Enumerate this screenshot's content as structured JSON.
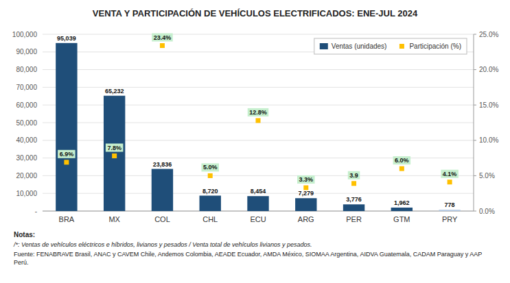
{
  "chart_data": {
    "type": "bar",
    "title": "VENTA Y PARTICIPACIÓN DE VEHÍCULOS ELECTRIFICADOS: ENE-JUL 2024",
    "categories": [
      "BRA",
      "MX",
      "COL",
      "CHL",
      "ECU",
      "ARG",
      "PER",
      "GTM",
      "PRY"
    ],
    "series": [
      {
        "name": "Ventas (unidades)",
        "type": "bar",
        "color": "#1F4E79",
        "colors": [
          "#1F4E79",
          "#1F4E79",
          "#1F4E79",
          "#1F4E79",
          "#1F4E79",
          "#1F4E79",
          "#1F4E79",
          "#1F4E79",
          "#B8CCE4"
        ],
        "values": [
          95039,
          65232,
          23836,
          8720,
          8454,
          7279,
          3776,
          1962,
          778
        ],
        "value_labels": [
          "95,039",
          "65,232",
          "23,836",
          "8,720",
          "8,454",
          "7,279",
          "3,776",
          "1,962",
          "778"
        ]
      },
      {
        "name": "Participación (%)",
        "type": "scatter",
        "axis": "y2",
        "color": "#FFC000",
        "marker": "square",
        "values": [
          6.9,
          7.8,
          23.4,
          5.0,
          12.8,
          3.3,
          3.9,
          6.0,
          4.1
        ],
        "value_labels": [
          "6.9%",
          "7.8%",
          "23.4%",
          "5.0%",
          "12.8%",
          "3.3%",
          "3.9",
          "6.0%",
          "4.1%"
        ]
      }
    ],
    "ylim": [
      0,
      100000
    ],
    "yticks": [
      {
        "value": 0,
        "label": "-"
      },
      {
        "value": 10000,
        "label": "10,000"
      },
      {
        "value": 20000,
        "label": "20,000"
      },
      {
        "value": 30000,
        "label": "30,000"
      },
      {
        "value": 40000,
        "label": "40,000"
      },
      {
        "value": 50000,
        "label": "50,000"
      },
      {
        "value": 60000,
        "label": "60,000"
      },
      {
        "value": 70000,
        "label": "70,000"
      },
      {
        "value": 80000,
        "label": "80,000"
      },
      {
        "value": 90000,
        "label": "90,000"
      },
      {
        "value": 100000,
        "label": "100,000"
      }
    ],
    "y2lim": [
      0,
      25.0
    ],
    "y2ticks": [
      {
        "value": 0.0,
        "label": "0.0%"
      },
      {
        "value": 5.0,
        "label": "5.0%"
      },
      {
        "value": 10.0,
        "label": "10.0%"
      },
      {
        "value": 15.0,
        "label": "15.0%"
      },
      {
        "value": 20.0,
        "label": "20.0%"
      },
      {
        "value": 25.0,
        "label": "25.0%"
      }
    ],
    "grid": true,
    "legend": "upper right",
    "data_labels": true,
    "annotations": [
      "Notas:",
      "/*: Ventas de vehículos eléctricos e híbridos, livianos y pesados / Venta total de vehículos livianos y pesados.",
      "Fuente: FENABRAVE Brasil, ANAC y CAVEM Chile, Andemos Colombia, AEADE Ecuador, AMDA México, SIOMAA Argentina, AIDVA Guatemala, CADAM Paraguay y AAP Perú."
    ]
  }
}
